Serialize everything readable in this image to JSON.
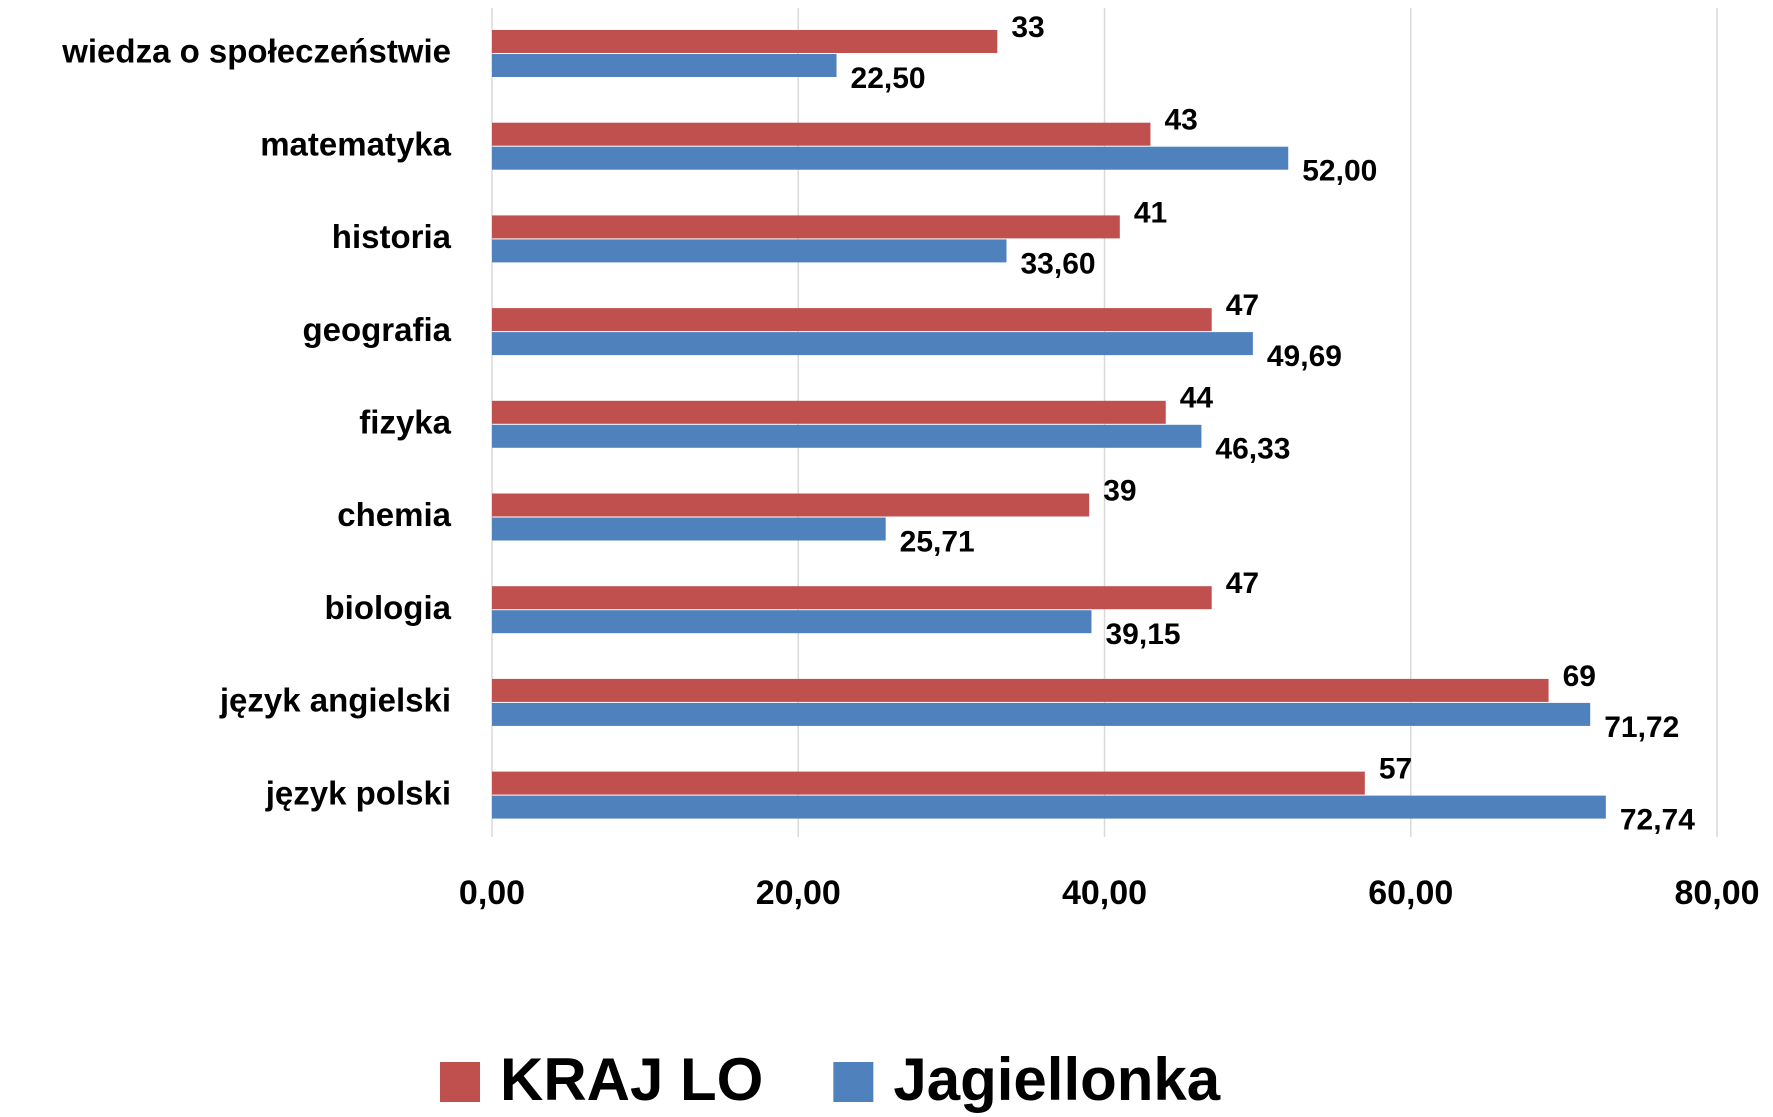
{
  "chart_data": {
    "type": "bar",
    "orientation": "horizontal",
    "categories": [
      "wiedza o społeczeństwie",
      "matematyka",
      "historia",
      "geografia",
      "fizyka",
      "chemia",
      "biologia",
      "język angielski",
      "język polski"
    ],
    "series": [
      {
        "name": "KRAJ LO",
        "color": "#c0504d",
        "values": [
          33,
          43,
          41,
          47,
          44,
          39,
          47,
          69,
          57
        ]
      },
      {
        "name": "Jagiellonka",
        "color": "#4f81bd",
        "values": [
          22.5,
          52,
          33.6,
          49.69,
          46.33,
          25.71,
          39.15,
          71.72,
          72.74
        ],
        "value_labels": [
          "22,50",
          "52,00",
          "33,60",
          "49,69",
          "46,33",
          "25,71",
          "39,15",
          "71,72",
          "72,74"
        ]
      }
    ],
    "xlim": [
      0,
      80
    ],
    "xticks": [
      {
        "value": 0,
        "label": "0,00"
      },
      {
        "value": 20,
        "label": "20,00"
      },
      {
        "value": 40,
        "label": "40,00"
      },
      {
        "value": 60,
        "label": "60,00"
      },
      {
        "value": 80,
        "label": "80,00"
      }
    ],
    "grid": true,
    "legend": "bottom"
  }
}
